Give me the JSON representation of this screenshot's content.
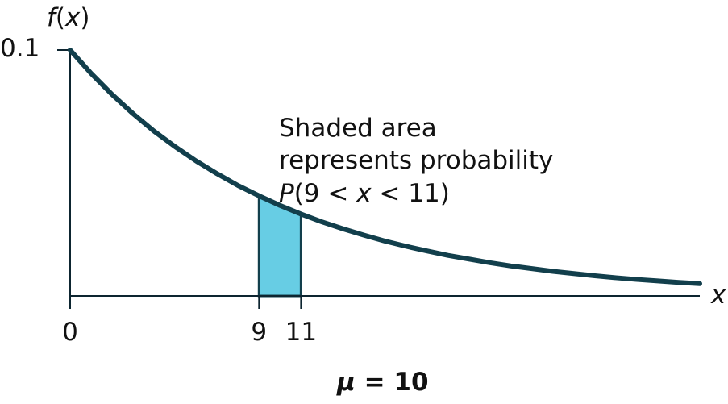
{
  "chart_data": {
    "type": "area",
    "function": "f(x) = 0.1e^(-0.1x)",
    "xlabel": "x",
    "ylabel": "f(x)",
    "xlim": [
      0,
      30
    ],
    "ylim": [
      0,
      0.1
    ],
    "x_ticks": [
      0,
      9,
      11
    ],
    "y_ticks": [
      0.1
    ],
    "series": [
      {
        "x": [
          0,
          1,
          2,
          3,
          4,
          5,
          6,
          7,
          8,
          9,
          10,
          11,
          12,
          13,
          14,
          15,
          16,
          17,
          18,
          19,
          20,
          21,
          22,
          23,
          24,
          25,
          26,
          27,
          28,
          29,
          30
        ],
        "y": [
          0.1,
          0.0905,
          0.0819,
          0.0741,
          0.067,
          0.0607,
          0.0549,
          0.0497,
          0.0449,
          0.0407,
          0.0368,
          0.0333,
          0.0301,
          0.0273,
          0.0247,
          0.0223,
          0.0202,
          0.0183,
          0.0165,
          0.015,
          0.0135,
          0.0122,
          0.0111,
          0.01,
          0.0091,
          0.0082,
          0.0074,
          0.0067,
          0.0061,
          0.0055,
          0.005
        ]
      }
    ],
    "shaded_interval": [
      9,
      11
    ],
    "annotation": [
      "Shaded area",
      "represents probability",
      "P(9 < x < 11)"
    ],
    "parameter_label": "μ = 10",
    "colors": {
      "curve": "#123f4c",
      "shade": "#67cde4",
      "axis": "#0d2530"
    }
  }
}
